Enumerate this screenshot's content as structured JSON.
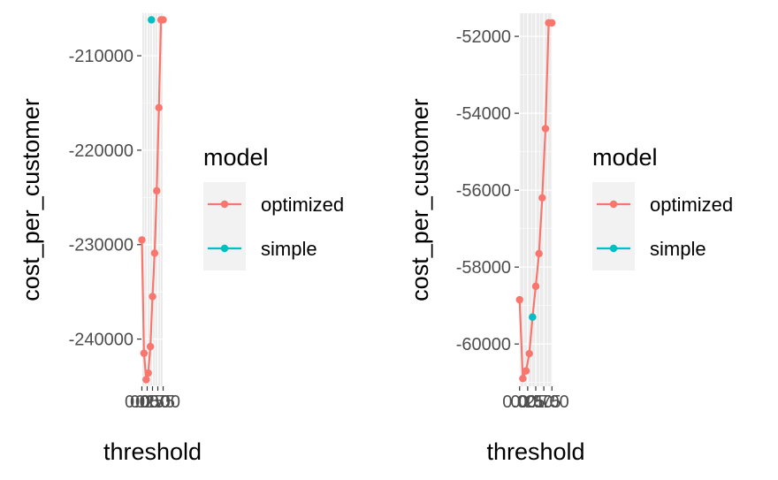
{
  "chart_data": [
    {
      "type": "line",
      "xlabel": "threshold",
      "ylabel": "cost_per_customer",
      "xlim": [
        -0.02,
        1.02
      ],
      "ylim": [
        -245000,
        -205500
      ],
      "xticks": [
        0.0,
        0.25,
        0.5,
        0.75,
        1.0
      ],
      "xtick_labels": [
        "0.00",
        "0.25",
        "0.50",
        "0.75",
        "1.00"
      ],
      "yticks": [
        -240000,
        -230000,
        -220000,
        -210000
      ],
      "ytick_labels": [
        "-240000",
        "-230000",
        "-220000",
        "-210000"
      ],
      "legend": {
        "title": "model",
        "position": "right"
      },
      "series": [
        {
          "name": "optimized",
          "color": "#F8766D",
          "points": [
            [
              0.0,
              -229500
            ],
            [
              0.1,
              -241500
            ],
            [
              0.2,
              -244300
            ],
            [
              0.3,
              -243600
            ],
            [
              0.4,
              -240800
            ],
            [
              0.5,
              -235500
            ],
            [
              0.6,
              -230900
            ],
            [
              0.7,
              -224300
            ],
            [
              0.8,
              -215500
            ],
            [
              0.9,
              -206200
            ],
            [
              1.0,
              -206200
            ]
          ]
        },
        {
          "name": "simple",
          "color": "#00BFC4",
          "points": [
            [
              0.45,
              -206200
            ]
          ]
        }
      ]
    },
    {
      "type": "line",
      "xlabel": "threshold",
      "ylabel": "cost_per_customer",
      "xlim": [
        -0.02,
        1.02
      ],
      "ylim": [
        -61100,
        -51400
      ],
      "xticks": [
        0.0,
        0.25,
        0.5,
        0.75,
        1.0
      ],
      "xtick_labels": [
        "0.00",
        "0.25",
        "0.50",
        "0.75",
        "1.00"
      ],
      "yticks": [
        -60000,
        -58000,
        -56000,
        -54000,
        -52000
      ],
      "ytick_labels": [
        "-60000",
        "-58000",
        "-56000",
        "-54000",
        "-52000"
      ],
      "legend": {
        "title": "model",
        "position": "right"
      },
      "series": [
        {
          "name": "optimized",
          "color": "#F8766D",
          "points": [
            [
              0.0,
              -58850
            ],
            [
              0.1,
              -60900
            ],
            [
              0.2,
              -60700
            ],
            [
              0.3,
              -60250
            ],
            [
              0.4,
              -59300
            ],
            [
              0.5,
              -58500
            ],
            [
              0.6,
              -57650
            ],
            [
              0.7,
              -56200
            ],
            [
              0.8,
              -54400
            ],
            [
              0.9,
              -51650
            ],
            [
              1.0,
              -51650
            ]
          ]
        },
        {
          "name": "simple",
          "color": "#00BFC4",
          "points": [
            [
              0.4,
              -59300
            ]
          ]
        }
      ]
    }
  ]
}
